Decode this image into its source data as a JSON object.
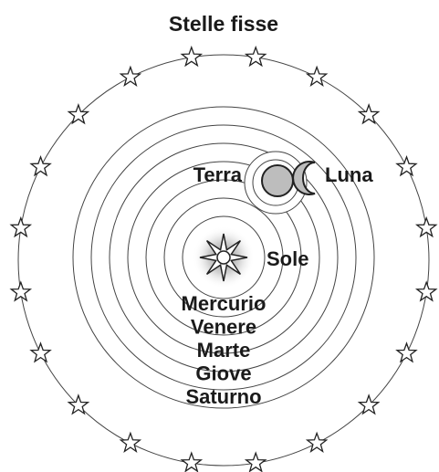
{
  "title": "Stelle fisse",
  "earth": "Terra",
  "moon": "Luna",
  "sun": "Sole",
  "planets": [
    "Mercurio",
    "Venere",
    "Marte",
    "Giove",
    "Saturno"
  ]
}
